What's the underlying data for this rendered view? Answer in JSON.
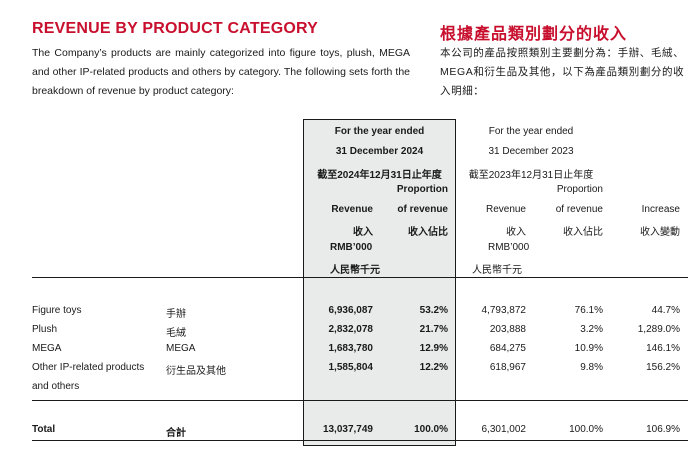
{
  "title_en": "REVENUE BY PRODUCT CATEGORY",
  "title_zh": "根據產品類別劃分的收入",
  "intro_en": "The Company’s products are mainly categorized into figure toys, plush, MEGA and other IP-related products and others by category. The following sets forth the breakdown of revenue by product category:",
  "intro_zh": "本公司的產品按照類別主要劃分為：手辦、毛絨、MEGA和衍生品及其他，以下為產品類別劃分的收入明細：",
  "header": {
    "y2024_line1": "For the year ended",
    "y2024_line2": "31 December 2024",
    "y2024_zh": "截至2024年12月31日止年度",
    "y2023_line1": "For the year ended",
    "y2023_line2": "31 December 2023",
    "y2023_zh": "截至2023年12月31日止年度",
    "proportion": "Proportion",
    "of_revenue": "of revenue",
    "revenue": "Revenue",
    "revenue_zh": "收入",
    "proportion_zh": "收入佔比",
    "rmb": "RMB’000",
    "rmb_zh": "人民幣千元",
    "increase": "Increase",
    "increase_zh": "收入變動"
  },
  "rows": [
    {
      "en": "Figure toys",
      "zh": "手辦",
      "rev2024": "6,936,087",
      "prop2024": "53.2%",
      "rev2023": "4,793,872",
      "prop2023": "76.1%",
      "increase": "44.7%"
    },
    {
      "en": "Plush",
      "zh": "毛絨",
      "rev2024": "2,832,078",
      "prop2024": "21.7%",
      "rev2023": "203,888",
      "prop2023": "3.2%",
      "increase": "1,289.0%"
    },
    {
      "en": "MEGA",
      "zh": "MEGA",
      "rev2024": "1,683,780",
      "prop2024": "12.9%",
      "rev2023": "684,275",
      "prop2023": "10.9%",
      "increase": "146.1%"
    },
    {
      "en": "Other IP-related products",
      "en2": "and others",
      "zh": "衍生品及其他",
      "rev2024": "1,585,804",
      "prop2024": "12.2%",
      "rev2023": "618,967",
      "prop2023": "9.8%",
      "increase": "156.2%"
    }
  ],
  "total": {
    "en": "Total",
    "zh": "合計",
    "rev2024": "13,037,749",
    "prop2024": "100.0%",
    "rev2023": "6,301,002",
    "prop2023": "100.0%",
    "increase": "106.9%"
  }
}
